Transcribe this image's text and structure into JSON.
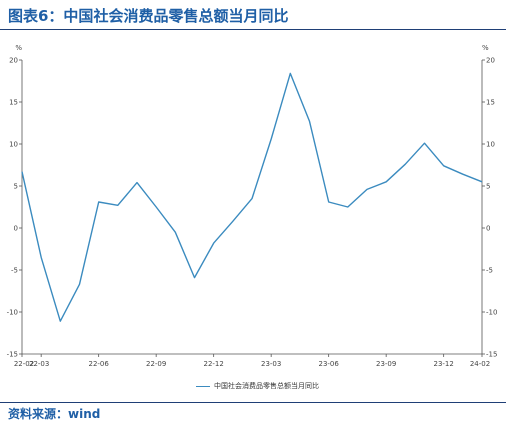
{
  "header": {
    "title": "图表6：中国社会消费品零售总额当月同比"
  },
  "footer": {
    "source": "资料来源：wind"
  },
  "colors": {
    "title": "#1f5fa6",
    "rule": "#1f3f76",
    "series": "#3b8bbf",
    "axis": "#555555"
  },
  "chart_data": {
    "type": "line",
    "title": "",
    "left_unit": "%",
    "right_unit": "%",
    "ylim": [
      -15,
      20
    ],
    "yticks": [
      -15,
      -10,
      -5,
      0,
      5,
      10,
      15,
      20
    ],
    "x_tick_labels": [
      "22-02",
      "22-03",
      "22-06",
      "22-09",
      "22-12",
      "23-03",
      "23-06",
      "23-09",
      "23-12",
      "24-02"
    ],
    "x": [
      "22-02",
      "22-03",
      "22-04",
      "22-05",
      "22-06",
      "22-07",
      "22-08",
      "22-09",
      "22-10",
      "22-11",
      "22-12",
      "23-01",
      "23-02",
      "23-03",
      "23-04",
      "23-05",
      "23-06",
      "23-07",
      "23-08",
      "23-09",
      "23-10",
      "23-11",
      "23-12",
      "24-01",
      "24-02"
    ],
    "grid": false,
    "legend_position": "bottom-center",
    "series": [
      {
        "name": "中国社会消费品零售总额当月同比",
        "values": [
          6.7,
          -3.5,
          -11.1,
          -6.7,
          3.1,
          2.7,
          5.4,
          2.5,
          -0.5,
          -5.9,
          -1.8,
          0.8,
          3.5,
          10.6,
          18.4,
          12.7,
          3.1,
          2.5,
          4.6,
          5.5,
          7.6,
          10.1,
          7.4,
          6.4,
          5.5
        ]
      }
    ]
  }
}
